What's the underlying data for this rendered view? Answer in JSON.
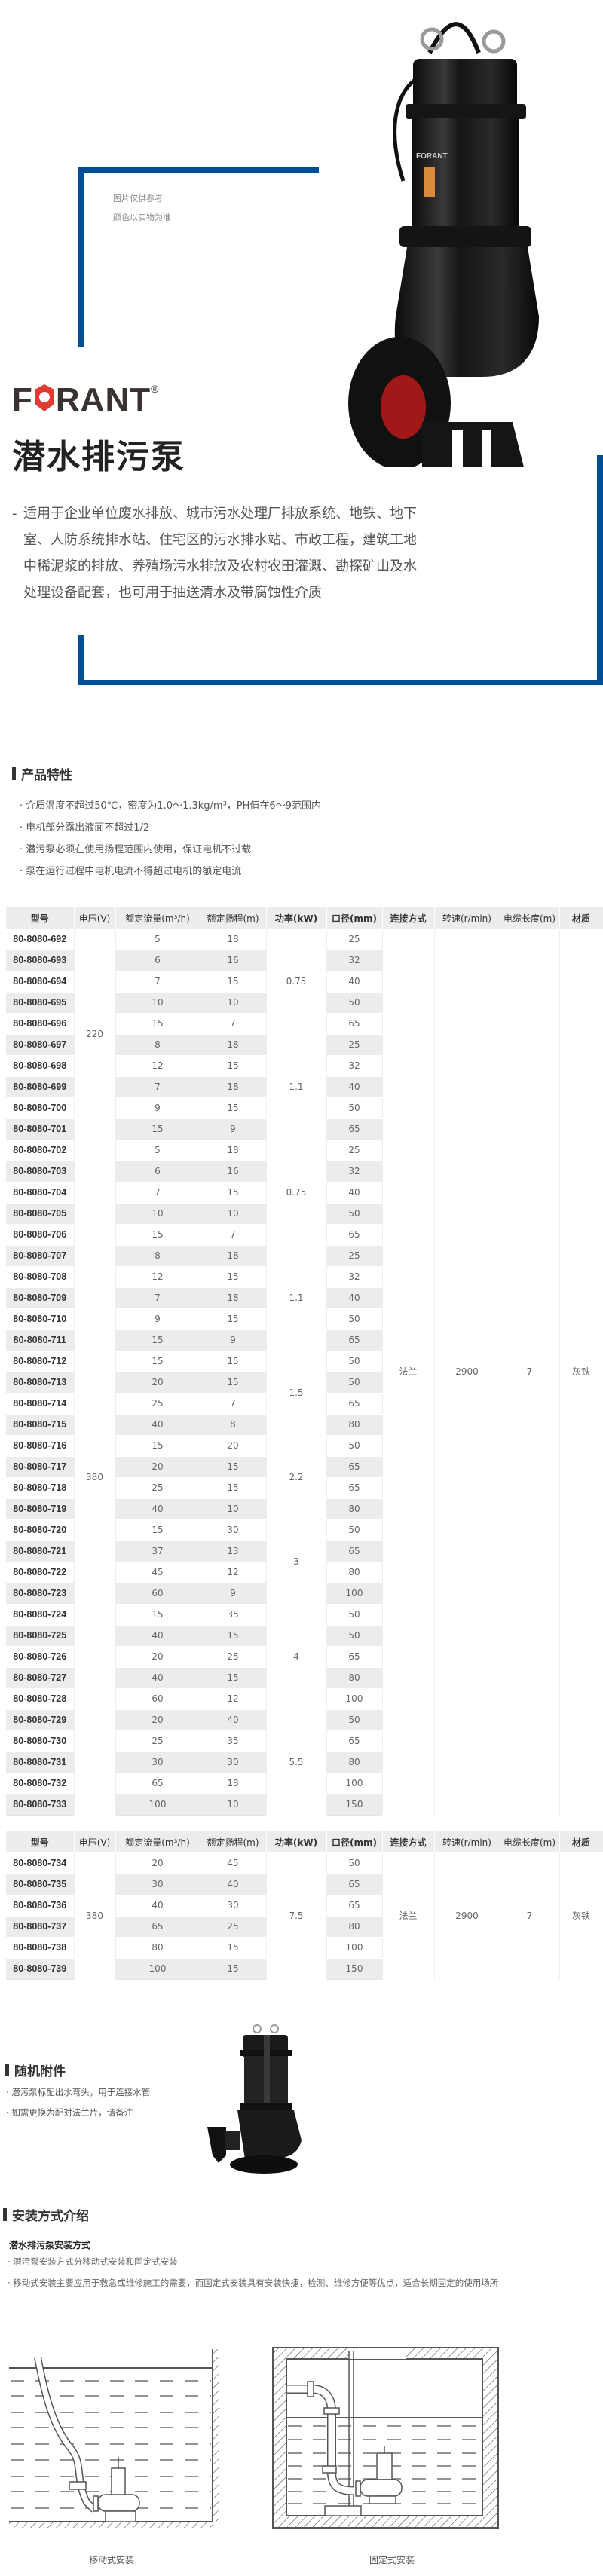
{
  "hero": {
    "notes": [
      "图片仅供参考",
      "颜色以实物为准"
    ],
    "brand": "FORANT",
    "brand_mark": "®",
    "title": "潜水排污泵",
    "description_dash": "-",
    "description": "适用于企业单位废水排放、城市污水处理厂排放系统、地铁、地下室、人防系统排水站、住宅区的污水排水站、市政工程，建筑工地中稀泥浆的排放、养殖场污水排放及农村农田灌溉、勘探矿山及水处理设备配套，也可用于抽送清水及带腐蚀性介质",
    "accent_color": "#004e96",
    "brand_color": "#e03c31"
  },
  "features": {
    "heading": "产品特性",
    "items": [
      "· 介质温度不超过50℃，密度为1.0～1.3kg/m³，PH值在6～9范围内",
      "· 电机部分露出液面不超过1/2",
      "· 潜污泵必须在使用扬程范围内使用，保证电机不过载",
      "· 泵在运行过程中电机电流不得超过电机的额定电流"
    ]
  },
  "spec_headers": [
    "型号",
    "电压(V)",
    "额定流量(m³/h)",
    "额定扬程(m)",
    "功率(kW)",
    "口径(mm)",
    "连接方式",
    "转速(r/min)",
    "电缆长度(m)",
    "材质"
  ],
  "table1": {
    "rows": [
      [
        "80-8080-692",
        "5",
        "18",
        "25"
      ],
      [
        "80-8080-693",
        "6",
        "16",
        "32"
      ],
      [
        "80-8080-694",
        "7",
        "15",
        "40"
      ],
      [
        "80-8080-695",
        "10",
        "10",
        "50"
      ],
      [
        "80-8080-696",
        "15",
        "7",
        "65"
      ],
      [
        "80-8080-697",
        "8",
        "18",
        "25"
      ],
      [
        "80-8080-698",
        "12",
        "15",
        "32"
      ],
      [
        "80-8080-699",
        "7",
        "18",
        "40"
      ],
      [
        "80-8080-700",
        "9",
        "15",
        "50"
      ],
      [
        "80-8080-701",
        "15",
        "9",
        "65"
      ],
      [
        "80-8080-702",
        "5",
        "18",
        "25"
      ],
      [
        "80-8080-703",
        "6",
        "16",
        "32"
      ],
      [
        "80-8080-704",
        "7",
        "15",
        "40"
      ],
      [
        "80-8080-705",
        "10",
        "10",
        "50"
      ],
      [
        "80-8080-706",
        "15",
        "7",
        "65"
      ],
      [
        "80-8080-707",
        "8",
        "18",
        "25"
      ],
      [
        "80-8080-708",
        "12",
        "15",
        "32"
      ],
      [
        "80-8080-709",
        "7",
        "18",
        "40"
      ],
      [
        "80-8080-710",
        "9",
        "15",
        "50"
      ],
      [
        "80-8080-711",
        "15",
        "9",
        "65"
      ],
      [
        "80-8080-712",
        "15",
        "15",
        "50"
      ],
      [
        "80-8080-713",
        "20",
        "15",
        "50"
      ],
      [
        "80-8080-714",
        "25",
        "7",
        "65"
      ],
      [
        "80-8080-715",
        "40",
        "8",
        "80"
      ],
      [
        "80-8080-716",
        "15",
        "20",
        "50"
      ],
      [
        "80-8080-717",
        "20",
        "15",
        "65"
      ],
      [
        "80-8080-718",
        "25",
        "15",
        "65"
      ],
      [
        "80-8080-719",
        "40",
        "10",
        "80"
      ],
      [
        "80-8080-720",
        "15",
        "30",
        "50"
      ],
      [
        "80-8080-721",
        "37",
        "13",
        "65"
      ],
      [
        "80-8080-722",
        "45",
        "12",
        "80"
      ],
      [
        "80-8080-723",
        "60",
        "9",
        "100"
      ],
      [
        "80-8080-724",
        "15",
        "35",
        "50"
      ],
      [
        "80-8080-725",
        "40",
        "15",
        "50"
      ],
      [
        "80-8080-726",
        "20",
        "25",
        "65"
      ],
      [
        "80-8080-727",
        "40",
        "15",
        "80"
      ],
      [
        "80-8080-728",
        "60",
        "12",
        "100"
      ],
      [
        "80-8080-729",
        "20",
        "40",
        "50"
      ],
      [
        "80-8080-730",
        "25",
        "35",
        "65"
      ],
      [
        "80-8080-731",
        "30",
        "30",
        "80"
      ],
      [
        "80-8080-732",
        "65",
        "18",
        "100"
      ],
      [
        "80-8080-733",
        "100",
        "10",
        "150"
      ]
    ],
    "voltage_groups": [
      {
        "value": "220",
        "rows": 10
      },
      {
        "value": "380",
        "rows": 32
      }
    ],
    "power_groups": [
      {
        "value": "0.75",
        "rows": 5
      },
      {
        "value": "1.1",
        "rows": 5
      },
      {
        "value": "0.75",
        "rows": 5
      },
      {
        "value": "1.1",
        "rows": 5
      },
      {
        "value": "1.5",
        "rows": 4
      },
      {
        "value": "2.2",
        "rows": 4
      },
      {
        "value": "3",
        "rows": 4
      },
      {
        "value": "4",
        "rows": 5
      },
      {
        "value": "5.5",
        "rows": 5
      }
    ],
    "shared": {
      "connection": "法兰",
      "speed": "2900",
      "cable": "7",
      "material": "灰铁"
    }
  },
  "table2": {
    "rows": [
      [
        "80-8080-734",
        "20",
        "45",
        "50"
      ],
      [
        "80-8080-735",
        "30",
        "40",
        "65"
      ],
      [
        "80-8080-736",
        "40",
        "30",
        "65"
      ],
      [
        "80-8080-737",
        "65",
        "25",
        "80"
      ],
      [
        "80-8080-738",
        "80",
        "15",
        "100"
      ],
      [
        "80-8080-739",
        "100",
        "15",
        "150"
      ]
    ],
    "voltage_groups": [
      {
        "value": "380",
        "rows": 6
      }
    ],
    "power_groups": [
      {
        "value": "7.5",
        "rows": 6
      }
    ],
    "shared": {
      "connection": "法兰",
      "speed": "2900",
      "cable": "7",
      "material": "灰铁"
    }
  },
  "accessories": {
    "heading": "随机附件",
    "items": [
      "· 潜污泵标配出水弯头，用于连接水管",
      "· 如需更换为配对法兰片，请备注"
    ]
  },
  "installation": {
    "heading": "安装方式介绍",
    "subheading": "潜水排污泵安装方式",
    "items": [
      "· 潜污泵安装方式分移动式安装和固定式安装",
      "· 移动式安装主要应用于救急或维修施工的需要，而固定式安装具有安装快捷，检测、维修方便等优点，适合长期固定的使用场所"
    ],
    "captions": [
      "移动式安装",
      "固定式安装"
    ]
  }
}
